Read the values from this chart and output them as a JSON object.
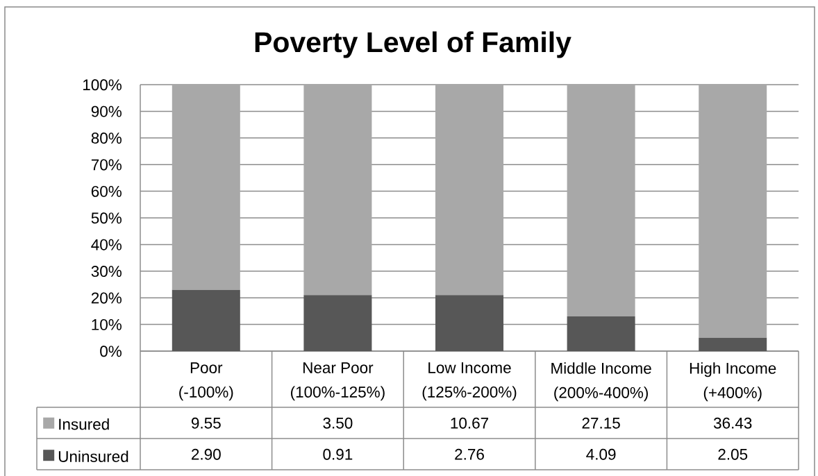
{
  "chart_data": {
    "type": "bar",
    "title": "Poverty Level of Family",
    "stacked": true,
    "categories": [
      "Poor (-100%)",
      "Near Poor (100%-125%)",
      "Low Income (125%-200%)",
      "Middle Income (200%-400%)",
      "High Income (+400%)"
    ],
    "series": [
      {
        "name": "Uninsured",
        "color": "#575757",
        "values": [
          23,
          21,
          21,
          13,
          5
        ]
      },
      {
        "name": "Insured",
        "color": "#a8a8a8",
        "values": [
          77,
          79,
          79,
          87,
          95
        ]
      }
    ],
    "ylim": [
      0,
      100
    ],
    "yticks": [
      {
        "value": 0,
        "label": "0%"
      },
      {
        "value": 10,
        "label": "10%"
      },
      {
        "value": 20,
        "label": "20%"
      },
      {
        "value": 30,
        "label": "30%"
      },
      {
        "value": 40,
        "label": "40%"
      },
      {
        "value": 50,
        "label": "50%"
      },
      {
        "value": 60,
        "label": "60%"
      },
      {
        "value": 70,
        "label": "70%"
      },
      {
        "value": 80,
        "label": "80%"
      },
      {
        "value": 90,
        "label": "90%"
      },
      {
        "value": 100,
        "label": "100%"
      }
    ],
    "annotations": [
      "9.55",
      "3.50",
      "10.67",
      "27.15",
      "36.43",
      "2.90",
      "0.91",
      "2.76",
      "4.09",
      "2.05"
    ],
    "grid": "y",
    "legend": "bottom left"
  }
}
